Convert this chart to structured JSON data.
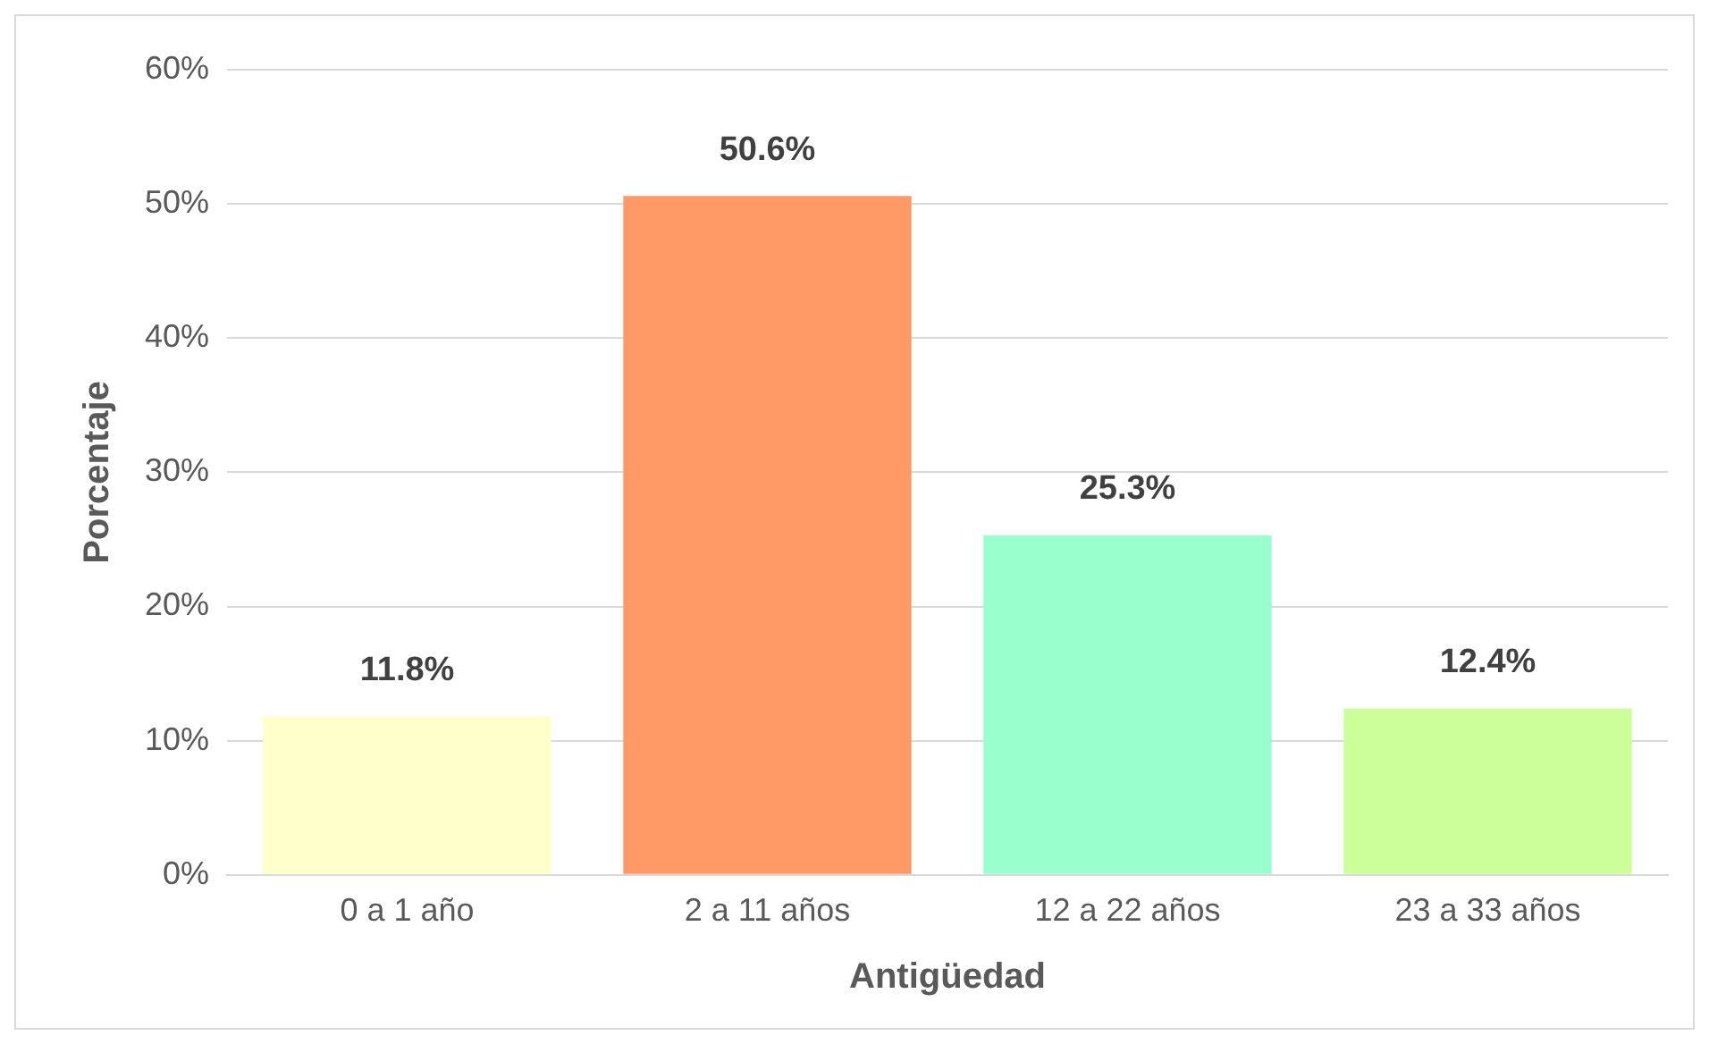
{
  "chart_data": {
    "type": "bar",
    "xlabel": "Antigüedad",
    "ylabel": "Porcentaje",
    "categories": [
      "0 a 1 año",
      "2 a 11 años",
      "12 a 22 años",
      "23 a 33 años"
    ],
    "values": [
      11.8,
      50.6,
      25.3,
      12.4
    ],
    "colors": [
      "#ffffcc",
      "#ff9966",
      "#99ffcc",
      "#ccff99"
    ],
    "value_labels": [
      "11.8%",
      "50.6%",
      "25.3%",
      "12.4%"
    ],
    "ylim": [
      0,
      60
    ],
    "yticks": [
      {
        "value": 0,
        "label": "0%"
      },
      {
        "value": 10,
        "label": "10%"
      },
      {
        "value": 20,
        "label": "20%"
      },
      {
        "value": 30,
        "label": "30%"
      },
      {
        "value": 40,
        "label": "40%"
      },
      {
        "value": 50,
        "label": "50%"
      },
      {
        "value": 60,
        "label": "60%"
      }
    ],
    "grid": "y",
    "legend": false
  }
}
